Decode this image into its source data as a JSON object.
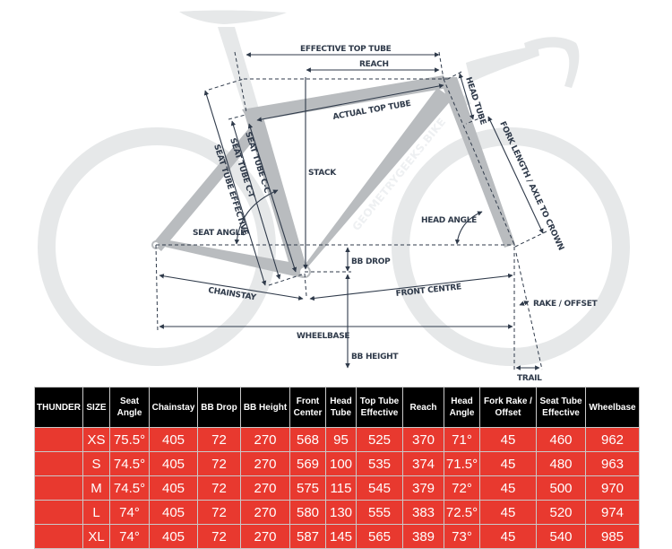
{
  "diagram": {
    "brand": "GEOMETRYGEEKS.BIKE",
    "labels": {
      "effective_top_tube": "EFFECTIVE TOP TUBE",
      "reach": "REACH",
      "actual_top_tube": "ACTUAL TOP TUBE",
      "head_tube": "HEAD TUBE",
      "fork_length": "FORK LENGTH / AXLE TO CROWN",
      "stack": "STACK",
      "seat_tube_effective": "SEAT TUBE EFFECTIVE",
      "seat_tube_ct": "SEAT TUBE C-T",
      "seat_tube_cc": "SEAT TUBE C-C",
      "seat_angle": "SEAT ANGLE",
      "head_angle": "HEAD ANGLE",
      "bb_drop": "BB DROP",
      "chainstay": "CHAINSTAY",
      "front_centre": "FRONT CENTRE",
      "rake_offset": "RAKE / OFFSET",
      "wheelbase": "WHEELBASE",
      "bb_height": "BB HEIGHT",
      "trail": "TRAIL"
    },
    "colors": {
      "frame": "#b9bcbf",
      "ghost": "#e6e8e9",
      "annotation": "#2f3a4a"
    }
  },
  "table": {
    "colors": {
      "header_bg": "#000000",
      "row_bg": "#e8392f",
      "text": "#ffffff"
    },
    "headers": [
      [
        "THUNDER"
      ],
      [
        "SIZE"
      ],
      [
        "Seat",
        "Angle"
      ],
      [
        "Chainstay"
      ],
      [
        "BB Drop"
      ],
      [
        "BB Height"
      ],
      [
        "Front",
        "Center"
      ],
      [
        "Head",
        "Tube"
      ],
      [
        "Top Tube",
        "Effective"
      ],
      [
        "Reach"
      ],
      [
        "Head",
        "Angle"
      ],
      [
        "Fork Rake /",
        "Offset"
      ],
      [
        "Seat Tube",
        "Effective"
      ],
      [
        "Wheelbase"
      ]
    ],
    "rows": [
      [
        "",
        "XS",
        "75.5°",
        "405",
        "72",
        "270",
        "568",
        "95",
        "525",
        "370",
        "71°",
        "45",
        "460",
        "962"
      ],
      [
        "",
        "S",
        "74.5°",
        "405",
        "72",
        "270",
        "569",
        "100",
        "535",
        "374",
        "71.5°",
        "45",
        "480",
        "963"
      ],
      [
        "",
        "M",
        "74.5°",
        "405",
        "72",
        "270",
        "575",
        "115",
        "545",
        "379",
        "72°",
        "45",
        "500",
        "970"
      ],
      [
        "",
        "L",
        "74°",
        "405",
        "72",
        "270",
        "580",
        "130",
        "555",
        "383",
        "72.5°",
        "45",
        "520",
        "974"
      ],
      [
        "",
        "XL",
        "74°",
        "405",
        "72",
        "270",
        "587",
        "145",
        "565",
        "389",
        "73°",
        "45",
        "540",
        "985"
      ]
    ]
  }
}
